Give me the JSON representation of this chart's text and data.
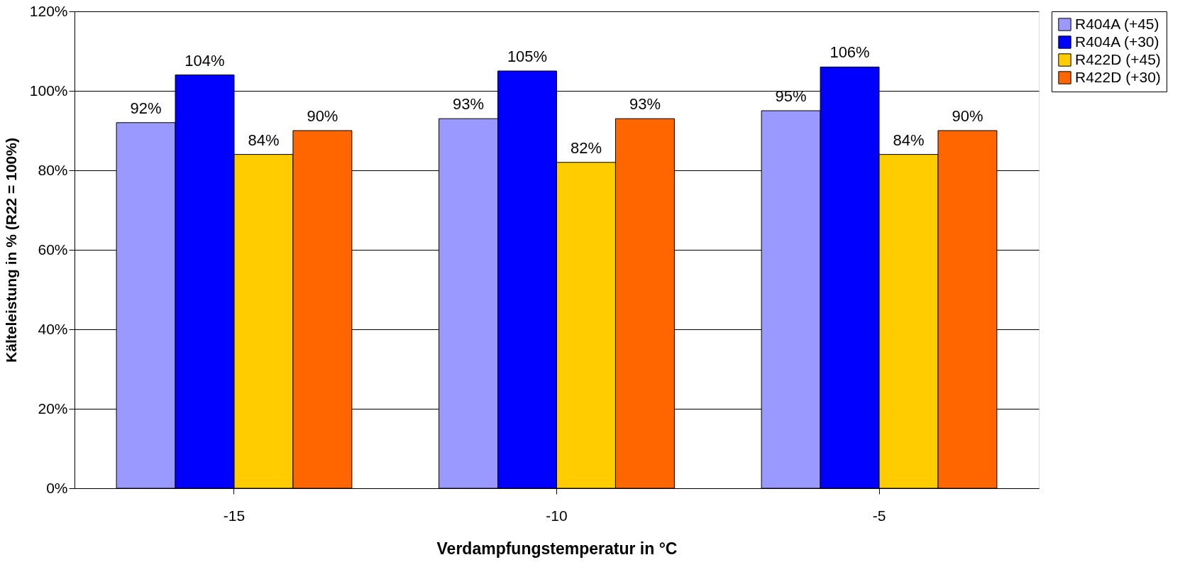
{
  "chart_data": {
    "type": "bar",
    "xlabel": "Verdampfungstemperatur in °C",
    "ylabel": "Kälteleistung in % (R22 = 100%)",
    "categories": [
      "-15",
      "-10",
      "-5"
    ],
    "series": [
      {
        "name": "R404A (+45)",
        "color": "#9999ff",
        "values": [
          92,
          93,
          95
        ],
        "value_labels": [
          "92%",
          "93%",
          "95%"
        ]
      },
      {
        "name": "R404A (+30)",
        "color": "#0000ff",
        "values": [
          104,
          105,
          106
        ],
        "value_labels": [
          "104%",
          "105%",
          "106%"
        ]
      },
      {
        "name": "R422D (+45)",
        "color": "#ffcc00",
        "values": [
          84,
          82,
          84
        ],
        "value_labels": [
          "84%",
          "82%",
          "84%"
        ]
      },
      {
        "name": "R422D (+30)",
        "color": "#ff6600",
        "values": [
          90,
          93,
          90
        ],
        "value_labels": [
          "90%",
          "93%",
          "90%"
        ]
      }
    ],
    "ylim": [
      0,
      120
    ],
    "yticks": [
      {
        "value": 0,
        "label": "0%"
      },
      {
        "value": 20,
        "label": "20%"
      },
      {
        "value": 40,
        "label": "40%"
      },
      {
        "value": 60,
        "label": "60%"
      },
      {
        "value": 80,
        "label": "80%"
      },
      {
        "value": 100,
        "label": "100%"
      },
      {
        "value": 120,
        "label": "120%"
      }
    ],
    "grid": "y",
    "legend": "right"
  }
}
